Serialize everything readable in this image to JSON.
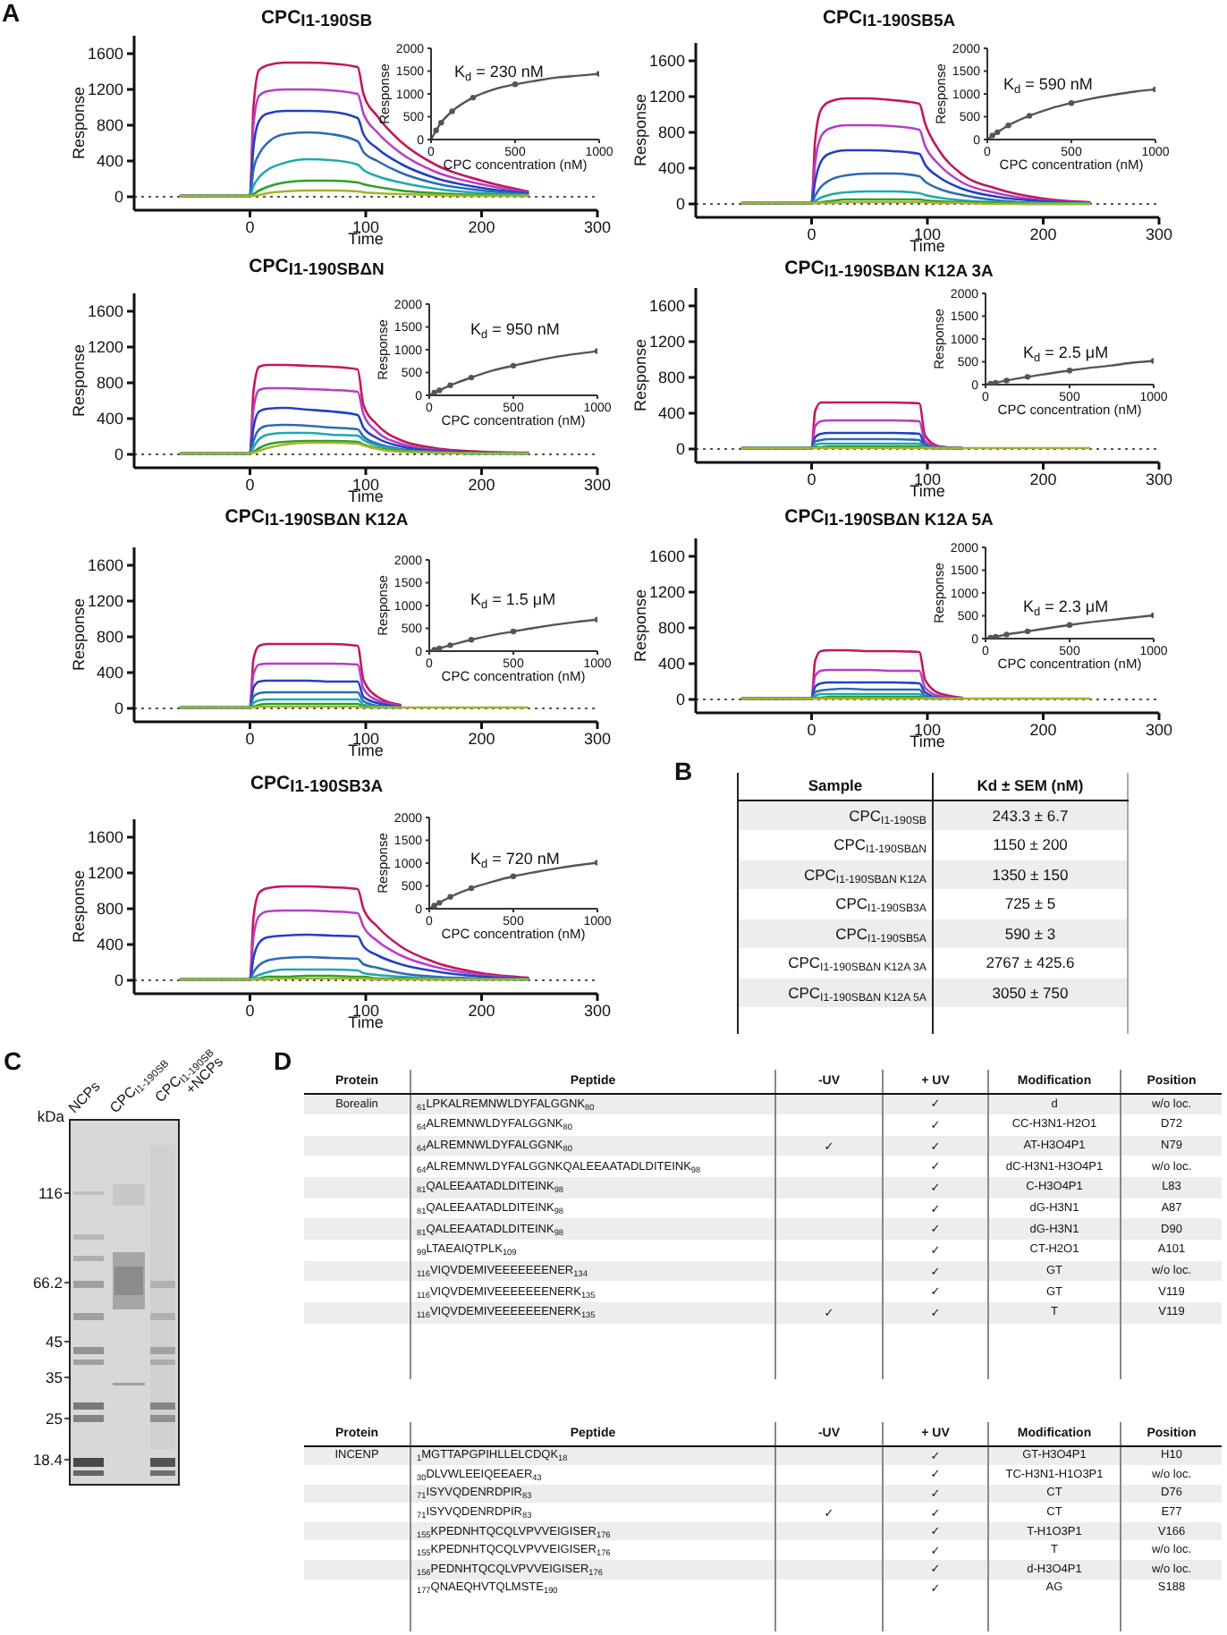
{
  "chart_data": [
    {
      "type": "line",
      "title": "CPC$_{I1-190SB}$",
      "xlabel": "Time",
      "ylabel": "Response",
      "annotations": [
        "A"
      ],
      "x": [
        -60,
        0,
        3,
        8,
        15,
        30,
        50,
        70,
        93,
        98,
        110,
        130,
        160,
        200,
        240
      ],
      "xlim": [
        -100,
        300
      ],
      "xticks": [
        0,
        100,
        200,
        300
      ],
      "ylim": [
        -150,
        1800
      ],
      "yticks": [
        0,
        400,
        800,
        1200,
        1600
      ],
      "ref_lines": [
        {
          "axis": "y",
          "value": 0,
          "line_style": "dotted",
          "color": "#555555"
        }
      ],
      "series": [
        {
          "color": "#c2185b",
          "values": [
            10,
            10,
            1000,
            1420,
            1470,
            1500,
            1500,
            1490,
            1450,
            1150,
            900,
            620,
            360,
            180,
            60
          ]
        },
        {
          "color": "#b53fc4",
          "values": [
            10,
            10,
            800,
            1130,
            1180,
            1200,
            1200,
            1190,
            1150,
            930,
            720,
            490,
            280,
            140,
            50
          ]
        },
        {
          "color": "#2341c4",
          "values": [
            10,
            10,
            550,
            850,
            930,
            960,
            960,
            950,
            880,
            700,
            540,
            370,
            210,
            100,
            40
          ]
        },
        {
          "color": "#2b6cb3",
          "values": [
            10,
            10,
            300,
            480,
            600,
            700,
            720,
            700,
            620,
            500,
            400,
            270,
            150,
            70,
            30
          ]
        },
        {
          "color": "#1fa9b0",
          "values": [
            10,
            10,
            120,
            220,
            300,
            380,
            420,
            410,
            360,
            300,
            230,
            160,
            90,
            40,
            20
          ]
        },
        {
          "color": "#2ca02c",
          "values": [
            10,
            10,
            30,
            70,
            110,
            160,
            180,
            180,
            160,
            140,
            110,
            70,
            40,
            20,
            10
          ]
        },
        {
          "color": "#a8b22a",
          "values": [
            10,
            10,
            10,
            20,
            40,
            60,
            70,
            70,
            60,
            50,
            40,
            30,
            20,
            10,
            10
          ]
        }
      ]
    },
    {
      "type": "line",
      "xlabel": "CPC concentration (nM)",
      "ylabel": "Response",
      "annotations": [
        "K$_{d}$ = 230 nM"
      ],
      "xlim": [
        0,
        1000
      ],
      "xticks": [
        0,
        500,
        1000
      ],
      "ylim": [
        0,
        2000
      ],
      "yticks": [
        0,
        500,
        1000,
        1500,
        2000
      ],
      "series": [
        {
          "color": "#555555",
          "x": [
            0,
            60,
            125,
            250,
            375,
            500,
            625,
            750,
            875,
            1000
          ],
          "values": [
            0,
            370,
            620,
            920,
            1100,
            1210,
            1290,
            1360,
            1400,
            1440
          ]
        },
        {
          "type": "scatter",
          "marker": "circle",
          "color": "#555555",
          "x": [
            30,
            60,
            125,
            250,
            500,
            1000
          ],
          "values": [
            200,
            370,
            620,
            920,
            1210,
            1440
          ]
        }
      ]
    },
    {
      "type": "line",
      "title": "CPC$_{I1-190SB5A}$",
      "xlabel": "Time",
      "ylabel": "Response",
      "x": [
        -60,
        0,
        3,
        8,
        15,
        30,
        50,
        70,
        93,
        98,
        110,
        130,
        160,
        200,
        240
      ],
      "xlim": [
        -100,
        300
      ],
      "xticks": [
        0,
        100,
        200,
        300
      ],
      "ylim": [
        -150,
        1800
      ],
      "yticks": [
        0,
        400,
        800,
        1200,
        1600
      ],
      "ref_lines": [
        {
          "axis": "y",
          "value": 0,
          "line_style": "dotted",
          "color": "#555555"
        }
      ],
      "series": [
        {
          "color": "#c2185b",
          "values": [
            10,
            10,
            700,
            1050,
            1140,
            1180,
            1180,
            1160,
            1120,
            900,
            600,
            330,
            170,
            60,
            20
          ]
        },
        {
          "color": "#b53fc4",
          "values": [
            10,
            10,
            450,
            750,
            840,
            880,
            880,
            870,
            830,
            650,
            440,
            240,
            120,
            40,
            10
          ]
        },
        {
          "color": "#2341c4",
          "values": [
            10,
            10,
            250,
            470,
            560,
            600,
            600,
            590,
            560,
            440,
            300,
            170,
            80,
            30,
            10
          ]
        },
        {
          "color": "#2b6cb3",
          "values": [
            10,
            10,
            90,
            190,
            260,
            320,
            340,
            340,
            310,
            250,
            170,
            100,
            40,
            10,
            10
          ]
        },
        {
          "color": "#1fa9b0",
          "values": [
            10,
            10,
            30,
            70,
            100,
            130,
            140,
            140,
            120,
            100,
            70,
            40,
            20,
            10,
            10
          ]
        },
        {
          "color": "#2ca02c",
          "values": [
            10,
            10,
            10,
            20,
            30,
            50,
            50,
            50,
            50,
            40,
            30,
            20,
            10,
            0,
            0
          ]
        },
        {
          "color": "#a8b22a",
          "values": [
            10,
            10,
            10,
            10,
            10,
            20,
            20,
            20,
            20,
            20,
            10,
            10,
            0,
            0,
            0
          ]
        }
      ]
    },
    {
      "type": "line",
      "xlabel": "CPC concentration (nM)",
      "ylabel": "Response",
      "annotations": [
        "K$_{d}$ = 590 nM"
      ],
      "xlim": [
        0,
        1000
      ],
      "xticks": [
        0,
        500,
        1000
      ],
      "ylim": [
        0,
        2000
      ],
      "yticks": [
        0,
        500,
        1000,
        1500,
        2000
      ],
      "series": [
        {
          "color": "#555555",
          "x": [
            0,
            60,
            125,
            250,
            375,
            500,
            625,
            750,
            875,
            1000
          ],
          "values": [
            0,
            160,
            310,
            520,
            680,
            800,
            900,
            980,
            1050,
            1100
          ]
        },
        {
          "type": "scatter",
          "marker": "circle",
          "color": "#555555",
          "x": [
            30,
            60,
            125,
            250,
            500,
            1000
          ],
          "values": [
            90,
            160,
            310,
            520,
            800,
            1100
          ]
        }
      ]
    },
    {
      "type": "line",
      "title": "CPC$_{I1-190SBΔN}$",
      "xlabel": "Time",
      "ylabel": "Response",
      "x": [
        -60,
        0,
        3,
        8,
        15,
        30,
        50,
        70,
        93,
        98,
        110,
        130,
        160,
        200,
        240
      ],
      "xlim": [
        -100,
        300
      ],
      "xticks": [
        0,
        100,
        200,
        300
      ],
      "ylim": [
        -150,
        1800
      ],
      "yticks": [
        0,
        400,
        800,
        1200,
        1600
      ],
      "ref_lines": [
        {
          "axis": "y",
          "value": 0,
          "line_style": "dotted",
          "color": "#555555"
        }
      ],
      "series": [
        {
          "color": "#c2185b",
          "values": [
            10,
            10,
            700,
            980,
            1000,
            1000,
            990,
            980,
            950,
            550,
            330,
            160,
            70,
            30,
            20
          ]
        },
        {
          "color": "#b53fc4",
          "values": [
            10,
            10,
            500,
            720,
            740,
            740,
            730,
            720,
            700,
            450,
            250,
            120,
            50,
            20,
            10
          ]
        },
        {
          "color": "#2341c4",
          "values": [
            10,
            10,
            300,
            480,
            510,
            520,
            500,
            480,
            440,
            300,
            180,
            90,
            40,
            20,
            10
          ]
        },
        {
          "color": "#2b6cb3",
          "values": [
            10,
            10,
            150,
            280,
            320,
            330,
            320,
            300,
            280,
            200,
            120,
            60,
            30,
            10,
            10
          ]
        },
        {
          "color": "#1fa9b0",
          "values": [
            10,
            10,
            80,
            170,
            220,
            240,
            240,
            220,
            210,
            160,
            100,
            50,
            20,
            10,
            10
          ]
        },
        {
          "color": "#2ca02c",
          "values": [
            10,
            10,
            30,
            70,
            110,
            140,
            150,
            150,
            140,
            110,
            70,
            40,
            20,
            10,
            10
          ]
        },
        {
          "color": "#a8b22a",
          "values": [
            10,
            10,
            20,
            40,
            70,
            110,
            130,
            130,
            120,
            100,
            60,
            30,
            20,
            10,
            10
          ]
        }
      ]
    },
    {
      "type": "line",
      "xlabel": "CPC concentration (nM)",
      "ylabel": "Response",
      "annotations": [
        "K$_{d}$ = 950 nM"
      ],
      "xlim": [
        0,
        1000
      ],
      "xticks": [
        0,
        500,
        1000
      ],
      "ylim": [
        0,
        2000
      ],
      "yticks": [
        0,
        500,
        1000,
        1500,
        2000
      ],
      "series": [
        {
          "color": "#555555",
          "x": [
            0,
            60,
            125,
            250,
            375,
            500,
            625,
            750,
            875,
            1000
          ],
          "values": [
            0,
            110,
            220,
            390,
            540,
            650,
            750,
            840,
            910,
            970
          ]
        },
        {
          "type": "scatter",
          "marker": "circle",
          "color": "#555555",
          "x": [
            30,
            60,
            125,
            250,
            500,
            1000
          ],
          "values": [
            60,
            110,
            220,
            390,
            650,
            970
          ]
        }
      ]
    },
    {
      "type": "line",
      "title": "CPC$_{I1-190SBΔN K12A 3A}$",
      "xlabel": "Time",
      "ylabel": "Response",
      "x": [
        -60,
        0,
        3,
        8,
        15,
        30,
        50,
        70,
        93,
        98,
        110,
        130,
        160,
        200,
        240
      ],
      "xlim": [
        -100,
        300
      ],
      "xticks": [
        0,
        100,
        200,
        300
      ],
      "ylim": [
        -150,
        1800
      ],
      "yticks": [
        0,
        400,
        800,
        1200,
        1600
      ],
      "ref_lines": [
        {
          "axis": "y",
          "value": 0,
          "line_style": "dotted",
          "color": "#555555"
        }
      ],
      "series": [
        {
          "color": "#c2185b",
          "values": [
            10,
            10,
            420,
            520,
            520,
            520,
            520,
            520,
            510,
            150,
            30,
            10,
            null,
            null,
            null
          ]
        },
        {
          "color": "#b53fc4",
          "values": [
            10,
            10,
            250,
            310,
            320,
            320,
            320,
            320,
            310,
            90,
            20,
            10,
            null,
            null,
            null
          ]
        },
        {
          "color": "#2341c4",
          "values": [
            10,
            10,
            130,
            170,
            180,
            180,
            180,
            180,
            170,
            50,
            10,
            10,
            null,
            null,
            null
          ]
        },
        {
          "color": "#2b6cb3",
          "values": [
            10,
            10,
            80,
            100,
            110,
            110,
            110,
            110,
            100,
            30,
            10,
            10,
            null,
            null,
            null
          ]
        },
        {
          "color": "#1fa9b0",
          "values": [
            10,
            10,
            40,
            60,
            60,
            60,
            60,
            60,
            60,
            20,
            10,
            10,
            null,
            null,
            null
          ]
        },
        {
          "color": "#2ca02c",
          "values": [
            10,
            10,
            20,
            20,
            30,
            30,
            30,
            30,
            30,
            10,
            10,
            10,
            null,
            null,
            null
          ]
        },
        {
          "color": "#a8b22a",
          "values": [
            10,
            10,
            10,
            10,
            10,
            10,
            10,
            10,
            10,
            10,
            10,
            10,
            10,
            10,
            10
          ]
        }
      ]
    },
    {
      "type": "line",
      "xlabel": "CPC concentration (nM)",
      "ylabel": "Response",
      "annotations": [
        "K$_{d}$ = 2.5 μM"
      ],
      "xlim": [
        0,
        1000
      ],
      "xticks": [
        0,
        500,
        1000
      ],
      "ylim": [
        0,
        2000
      ],
      "yticks": [
        0,
        500,
        1000,
        1500,
        2000
      ],
      "series": [
        {
          "color": "#555555",
          "x": [
            0,
            60,
            125,
            250,
            375,
            500,
            625,
            750,
            875,
            1000
          ],
          "values": [
            0,
            40,
            90,
            170,
            240,
            310,
            370,
            420,
            480,
            520
          ]
        },
        {
          "type": "scatter",
          "marker": "circle",
          "color": "#555555",
          "x": [
            30,
            60,
            125,
            250,
            500,
            1000
          ],
          "values": [
            20,
            40,
            90,
            170,
            310,
            520
          ]
        }
      ]
    },
    {
      "type": "line",
      "title": "CPC$_{I1-190SBΔN K12A}$",
      "xlabel": "Time",
      "ylabel": "Response",
      "x": [
        -60,
        0,
        3,
        8,
        15,
        30,
        50,
        70,
        93,
        98,
        110,
        130,
        160,
        200,
        240
      ],
      "xlim": [
        -100,
        300
      ],
      "xticks": [
        0,
        100,
        200,
        300
      ],
      "ylim": [
        -150,
        1800
      ],
      "yticks": [
        0,
        400,
        800,
        1200,
        1600
      ],
      "ref_lines": [
        {
          "axis": "y",
          "value": 0,
          "line_style": "dotted",
          "color": "#555555"
        }
      ],
      "series": [
        {
          "color": "#c2185b",
          "values": [
            10,
            10,
            550,
            700,
            720,
            720,
            720,
            720,
            700,
            320,
            130,
            40,
            null,
            null,
            null
          ]
        },
        {
          "color": "#b53fc4",
          "values": [
            10,
            10,
            380,
            490,
            500,
            500,
            500,
            500,
            490,
            220,
            90,
            30,
            null,
            null,
            null
          ]
        },
        {
          "color": "#2341c4",
          "values": [
            10,
            10,
            230,
            300,
            310,
            310,
            310,
            300,
            300,
            130,
            60,
            20,
            null,
            null,
            null
          ]
        },
        {
          "color": "#2b6cb3",
          "values": [
            10,
            10,
            130,
            170,
            180,
            180,
            180,
            180,
            180,
            80,
            30,
            10,
            null,
            null,
            null
          ]
        },
        {
          "color": "#1fa9b0",
          "values": [
            10,
            10,
            60,
            90,
            100,
            100,
            100,
            100,
            100,
            40,
            20,
            10,
            null,
            null,
            null
          ]
        },
        {
          "color": "#2ca02c",
          "values": [
            10,
            10,
            20,
            40,
            50,
            50,
            50,
            50,
            50,
            20,
            10,
            10,
            null,
            null,
            null
          ]
        },
        {
          "color": "#a8b22a",
          "values": [
            10,
            10,
            10,
            20,
            20,
            20,
            20,
            20,
            20,
            10,
            10,
            10,
            10,
            10,
            10
          ]
        }
      ]
    },
    {
      "type": "line",
      "xlabel": "CPC concentration (nM)",
      "ylabel": "Response",
      "annotations": [
        "K$_{d}$ = 1.5 μM"
      ],
      "xlim": [
        0,
        1000
      ],
      "xticks": [
        0,
        500,
        1000
      ],
      "ylim": [
        0,
        2000
      ],
      "yticks": [
        0,
        500,
        1000,
        1500,
        2000
      ],
      "series": [
        {
          "color": "#555555",
          "x": [
            0,
            60,
            125,
            250,
            375,
            500,
            625,
            750,
            875,
            1000
          ],
          "values": [
            0,
            60,
            130,
            250,
            350,
            430,
            510,
            580,
            640,
            690
          ]
        },
        {
          "type": "scatter",
          "marker": "circle",
          "color": "#555555",
          "x": [
            30,
            60,
            125,
            250,
            500,
            1000
          ],
          "values": [
            30,
            60,
            130,
            250,
            430,
            690
          ]
        }
      ]
    },
    {
      "type": "line",
      "title": "CPC$_{I1-190SBΔN K12A 5A}$",
      "xlabel": "Time",
      "ylabel": "Response",
      "x": [
        -60,
        0,
        3,
        8,
        15,
        30,
        50,
        70,
        93,
        98,
        110,
        130,
        160,
        200,
        240
      ],
      "xlim": [
        -100,
        300
      ],
      "xticks": [
        0,
        100,
        200,
        300
      ],
      "ylim": [
        -150,
        1800
      ],
      "yticks": [
        0,
        400,
        800,
        1200,
        1600
      ],
      "ref_lines": [
        {
          "axis": "y",
          "value": 0,
          "line_style": "dotted",
          "color": "#555555"
        }
      ],
      "series": [
        {
          "color": "#c2185b",
          "values": [
            10,
            10,
            430,
            540,
            550,
            550,
            540,
            540,
            530,
            220,
            70,
            20,
            null,
            null,
            null
          ]
        },
        {
          "color": "#b53fc4",
          "values": [
            10,
            10,
            260,
            320,
            330,
            330,
            330,
            320,
            320,
            130,
            40,
            10,
            null,
            null,
            null
          ]
        },
        {
          "color": "#2341c4",
          "values": [
            10,
            10,
            140,
            180,
            190,
            190,
            190,
            190,
            180,
            80,
            20,
            10,
            null,
            null,
            null
          ]
        },
        {
          "color": "#2b6cb3",
          "values": [
            10,
            10,
            80,
            100,
            110,
            120,
            110,
            110,
            110,
            40,
            20,
            10,
            null,
            null,
            null
          ]
        },
        {
          "color": "#1fa9b0",
          "values": [
            10,
            10,
            40,
            60,
            60,
            60,
            60,
            60,
            60,
            20,
            10,
            10,
            null,
            null,
            null
          ]
        },
        {
          "color": "#2ca02c",
          "values": [
            10,
            10,
            20,
            20,
            30,
            30,
            30,
            30,
            30,
            10,
            10,
            10,
            null,
            null,
            null
          ]
        },
        {
          "color": "#a8b22a",
          "values": [
            10,
            10,
            10,
            10,
            10,
            10,
            10,
            10,
            10,
            10,
            10,
            10,
            10,
            10,
            10
          ]
        }
      ]
    },
    {
      "type": "line",
      "xlabel": "CPC concentration (nM)",
      "ylabel": "Response",
      "annotations": [
        "K$_{d}$ = 2.3 μM"
      ],
      "xlim": [
        0,
        1000
      ],
      "xticks": [
        0,
        500,
        1000
      ],
      "ylim": [
        0,
        2000
      ],
      "yticks": [
        0,
        500,
        1000,
        1500,
        2000
      ],
      "series": [
        {
          "color": "#555555",
          "x": [
            0,
            60,
            125,
            250,
            375,
            500,
            625,
            750,
            875,
            1000
          ],
          "values": [
            0,
            40,
            90,
            160,
            230,
            300,
            360,
            410,
            460,
            510
          ]
        },
        {
          "type": "scatter",
          "marker": "circle",
          "color": "#555555",
          "x": [
            30,
            60,
            125,
            250,
            500,
            1000
          ],
          "values": [
            20,
            40,
            90,
            160,
            300,
            510
          ]
        }
      ]
    },
    {
      "type": "line",
      "title": "CPC$_{I1-190SB3A}$",
      "xlabel": "Time",
      "ylabel": "Response",
      "x": [
        -60,
        0,
        3,
        8,
        15,
        30,
        50,
        70,
        93,
        98,
        110,
        130,
        160,
        200,
        240
      ],
      "xlim": [
        -100,
        300
      ],
      "xticks": [
        0,
        100,
        200,
        300
      ],
      "ylim": [
        -150,
        1800
      ],
      "yticks": [
        0,
        400,
        800,
        1200,
        1600
      ],
      "ref_lines": [
        {
          "axis": "y",
          "value": 0,
          "line_style": "dotted",
          "color": "#555555"
        }
      ],
      "series": [
        {
          "color": "#c2185b",
          "values": [
            10,
            10,
            700,
            980,
            1030,
            1050,
            1050,
            1040,
            1020,
            800,
            600,
            380,
            200,
            80,
            30
          ]
        },
        {
          "color": "#b53fc4",
          "values": [
            10,
            10,
            480,
            720,
            770,
            780,
            780,
            770,
            750,
            600,
            440,
            280,
            150,
            60,
            20
          ]
        },
        {
          "color": "#2341c4",
          "values": [
            10,
            10,
            250,
            420,
            480,
            500,
            510,
            500,
            490,
            380,
            280,
            180,
            100,
            40,
            20
          ]
        },
        {
          "color": "#2b6cb3",
          "values": [
            10,
            10,
            90,
            170,
            220,
            250,
            260,
            250,
            240,
            180,
            140,
            80,
            40,
            20,
            10
          ]
        },
        {
          "color": "#1fa9b0",
          "values": [
            10,
            10,
            30,
            60,
            90,
            120,
            120,
            120,
            110,
            80,
            60,
            40,
            20,
            10,
            10
          ]
        },
        {
          "color": "#2ca02c",
          "values": [
            10,
            10,
            10,
            20,
            40,
            40,
            50,
            50,
            40,
            40,
            20,
            20,
            10,
            10,
            10
          ]
        },
        {
          "color": "#a8b22a",
          "values": [
            10,
            10,
            10,
            10,
            10,
            20,
            20,
            20,
            20,
            20,
            10,
            10,
            10,
            10,
            10
          ]
        }
      ]
    },
    {
      "type": "line",
      "xlabel": "CPC concentration (nM)",
      "ylabel": "Response",
      "annotations": [
        "K$_{d}$ = 720 nM"
      ],
      "xlim": [
        0,
        1000
      ],
      "xticks": [
        0,
        500,
        1000
      ],
      "ylim": [
        0,
        2000
      ],
      "yticks": [
        0,
        500,
        1000,
        1500,
        2000
      ],
      "series": [
        {
          "color": "#555555",
          "x": [
            0,
            60,
            125,
            250,
            375,
            500,
            625,
            750,
            875,
            1000
          ],
          "values": [
            0,
            130,
            260,
            450,
            590,
            710,
            800,
            880,
            950,
            1010
          ]
        },
        {
          "type": "scatter",
          "marker": "circle",
          "color": "#555555",
          "x": [
            30,
            60,
            125,
            250,
            500,
            1000
          ],
          "values": [
            70,
            130,
            260,
            450,
            710,
            1010
          ]
        }
      ]
    },
    {
      "type": "other",
      "annotations": [
        "B"
      ],
      "categories": [
        "Sample",
        "Kd ± SEM (nM)"
      ],
      "cell_labels": [
        [
          "CPC$_{I1-190SB}$",
          "243.3 ± 6.7"
        ],
        [
          "CPC$_{I1-190SBΔN}$",
          "1150 ± 200"
        ],
        [
          "CPC$_{I1-190SBΔN K12A}$",
          "1350 ± 150"
        ],
        [
          "CPC$_{I1-190SB3A}$",
          "725 ± 5"
        ],
        [
          "CPC$_{I1-190SB5A}$",
          "590 ± 3"
        ],
        [
          "CPC$_{I1-190SBΔN K12A 3A}$",
          "2767 ± 425.6"
        ],
        [
          "CPC$_{I1-190SBΔN K12A 5A}$",
          "3050 ± 750"
        ]
      ]
    },
    {
      "type": "other",
      "annotations": [
        "C",
        "116",
        "66.2",
        "45",
        "35",
        "25",
        "18.4"
      ],
      "ylabel": "kDa",
      "categories": [
        "NCPs",
        "CPC$_{I1-190SB}$",
        "CPC$_{I1-190SB}$ +NCPs"
      ]
    },
    {
      "type": "other",
      "annotations": [
        "D"
      ],
      "categories": [
        "Protein",
        "Peptide",
        "-UV",
        "+ UV",
        "Modification",
        "Position"
      ],
      "cell_labels": [
        [
          "Borealin",
          "$_{61}$LPKALREMNWLDYFALGGNK$_{80}$",
          null,
          "✓",
          "d",
          "w/o loc."
        ],
        [
          null,
          "$_{64}$ALREMNWLDYFALGGNK$_{80}$",
          null,
          "✓",
          "CC-H3N1-H2O1",
          "D72"
        ],
        [
          null,
          "$_{64}$ALREMNWLDYFALGGNK$_{80}$",
          "✓",
          "✓",
          "AT-H3O4P1",
          "N79"
        ],
        [
          null,
          "$_{64}$ALREMNWLDYFALGGNKQALEEAATADLDITEINK$_{98}$",
          null,
          "✓",
          "dC-H3N1-H3O4P1",
          "w/o loc."
        ],
        [
          null,
          "$_{81}$QALEEAATADLDITEINK$_{98}$",
          null,
          "✓",
          "C-H3O4P1",
          "L83"
        ],
        [
          null,
          "$_{81}$QALEEAATADLDITEINK$_{98}$",
          null,
          "✓",
          "dG-H3N1",
          "A87"
        ],
        [
          null,
          "$_{81}$QALEEAATADLDITEINK$_{98}$",
          null,
          "✓",
          "dG-H3N1",
          "D90"
        ],
        [
          null,
          "$_{99}$LTAEAIQTPLK$_{109}$",
          null,
          "✓",
          "CT-H2O1",
          "A101"
        ],
        [
          null,
          "$_{116}$VIQVDEMIVEEEEEEENER$_{134}$",
          null,
          "✓",
          "GT",
          "w/o loc."
        ],
        [
          null,
          "$_{116}$VIQVDEMIVEEEEEEENERK$_{135}$",
          null,
          "✓",
          "GT",
          "V119"
        ],
        [
          null,
          "$_{116}$VIQVDEMIVEEEEEEENERK$_{135}$",
          "✓",
          "✓",
          "T",
          "V119"
        ]
      ]
    },
    {
      "type": "other",
      "categories": [
        "Protein",
        "Peptide",
        "-UV",
        "+ UV",
        "Modification",
        "Position"
      ],
      "cell_labels": [
        [
          "INCENP",
          "$_{1}$MGTTAPGPIHLLELCDQK$_{18}$",
          null,
          "✓",
          "GT-H3O4P1",
          "H10"
        ],
        [
          null,
          "$_{30}$DLVWLEEIQEEAER$_{43}$",
          null,
          "✓",
          "TC-H3N1-H1O3P1",
          "w/o loc."
        ],
        [
          null,
          "$_{71}$ISYVQDENRDPIR$_{83}$",
          null,
          "✓",
          "CT",
          "D76"
        ],
        [
          null,
          "$_{71}$ISYVQDENRDPIR$_{83}$",
          "✓",
          "✓",
          "CT",
          "E77"
        ],
        [
          null,
          "$_{155}$KPEDNHTQCQLVPVVEIGISER$_{176}$",
          null,
          "✓",
          "T-H1O3P1",
          "V166"
        ],
        [
          null,
          "$_{155}$KPEDNHTQCQLVPVVEIGISER$_{176}$",
          null,
          "✓",
          "T",
          "w/o loc."
        ],
        [
          null,
          "$_{156}$PEDNHTQCQLVPVVEIGISER$_{176}$",
          null,
          "✓",
          "d-H3O4P1",
          "w/o loc."
        ],
        [
          null,
          "$_{177}$QNAEQHVTQLMSTE$_{190}$",
          null,
          "✓",
          "AG",
          "S188"
        ]
      ]
    }
  ]
}
